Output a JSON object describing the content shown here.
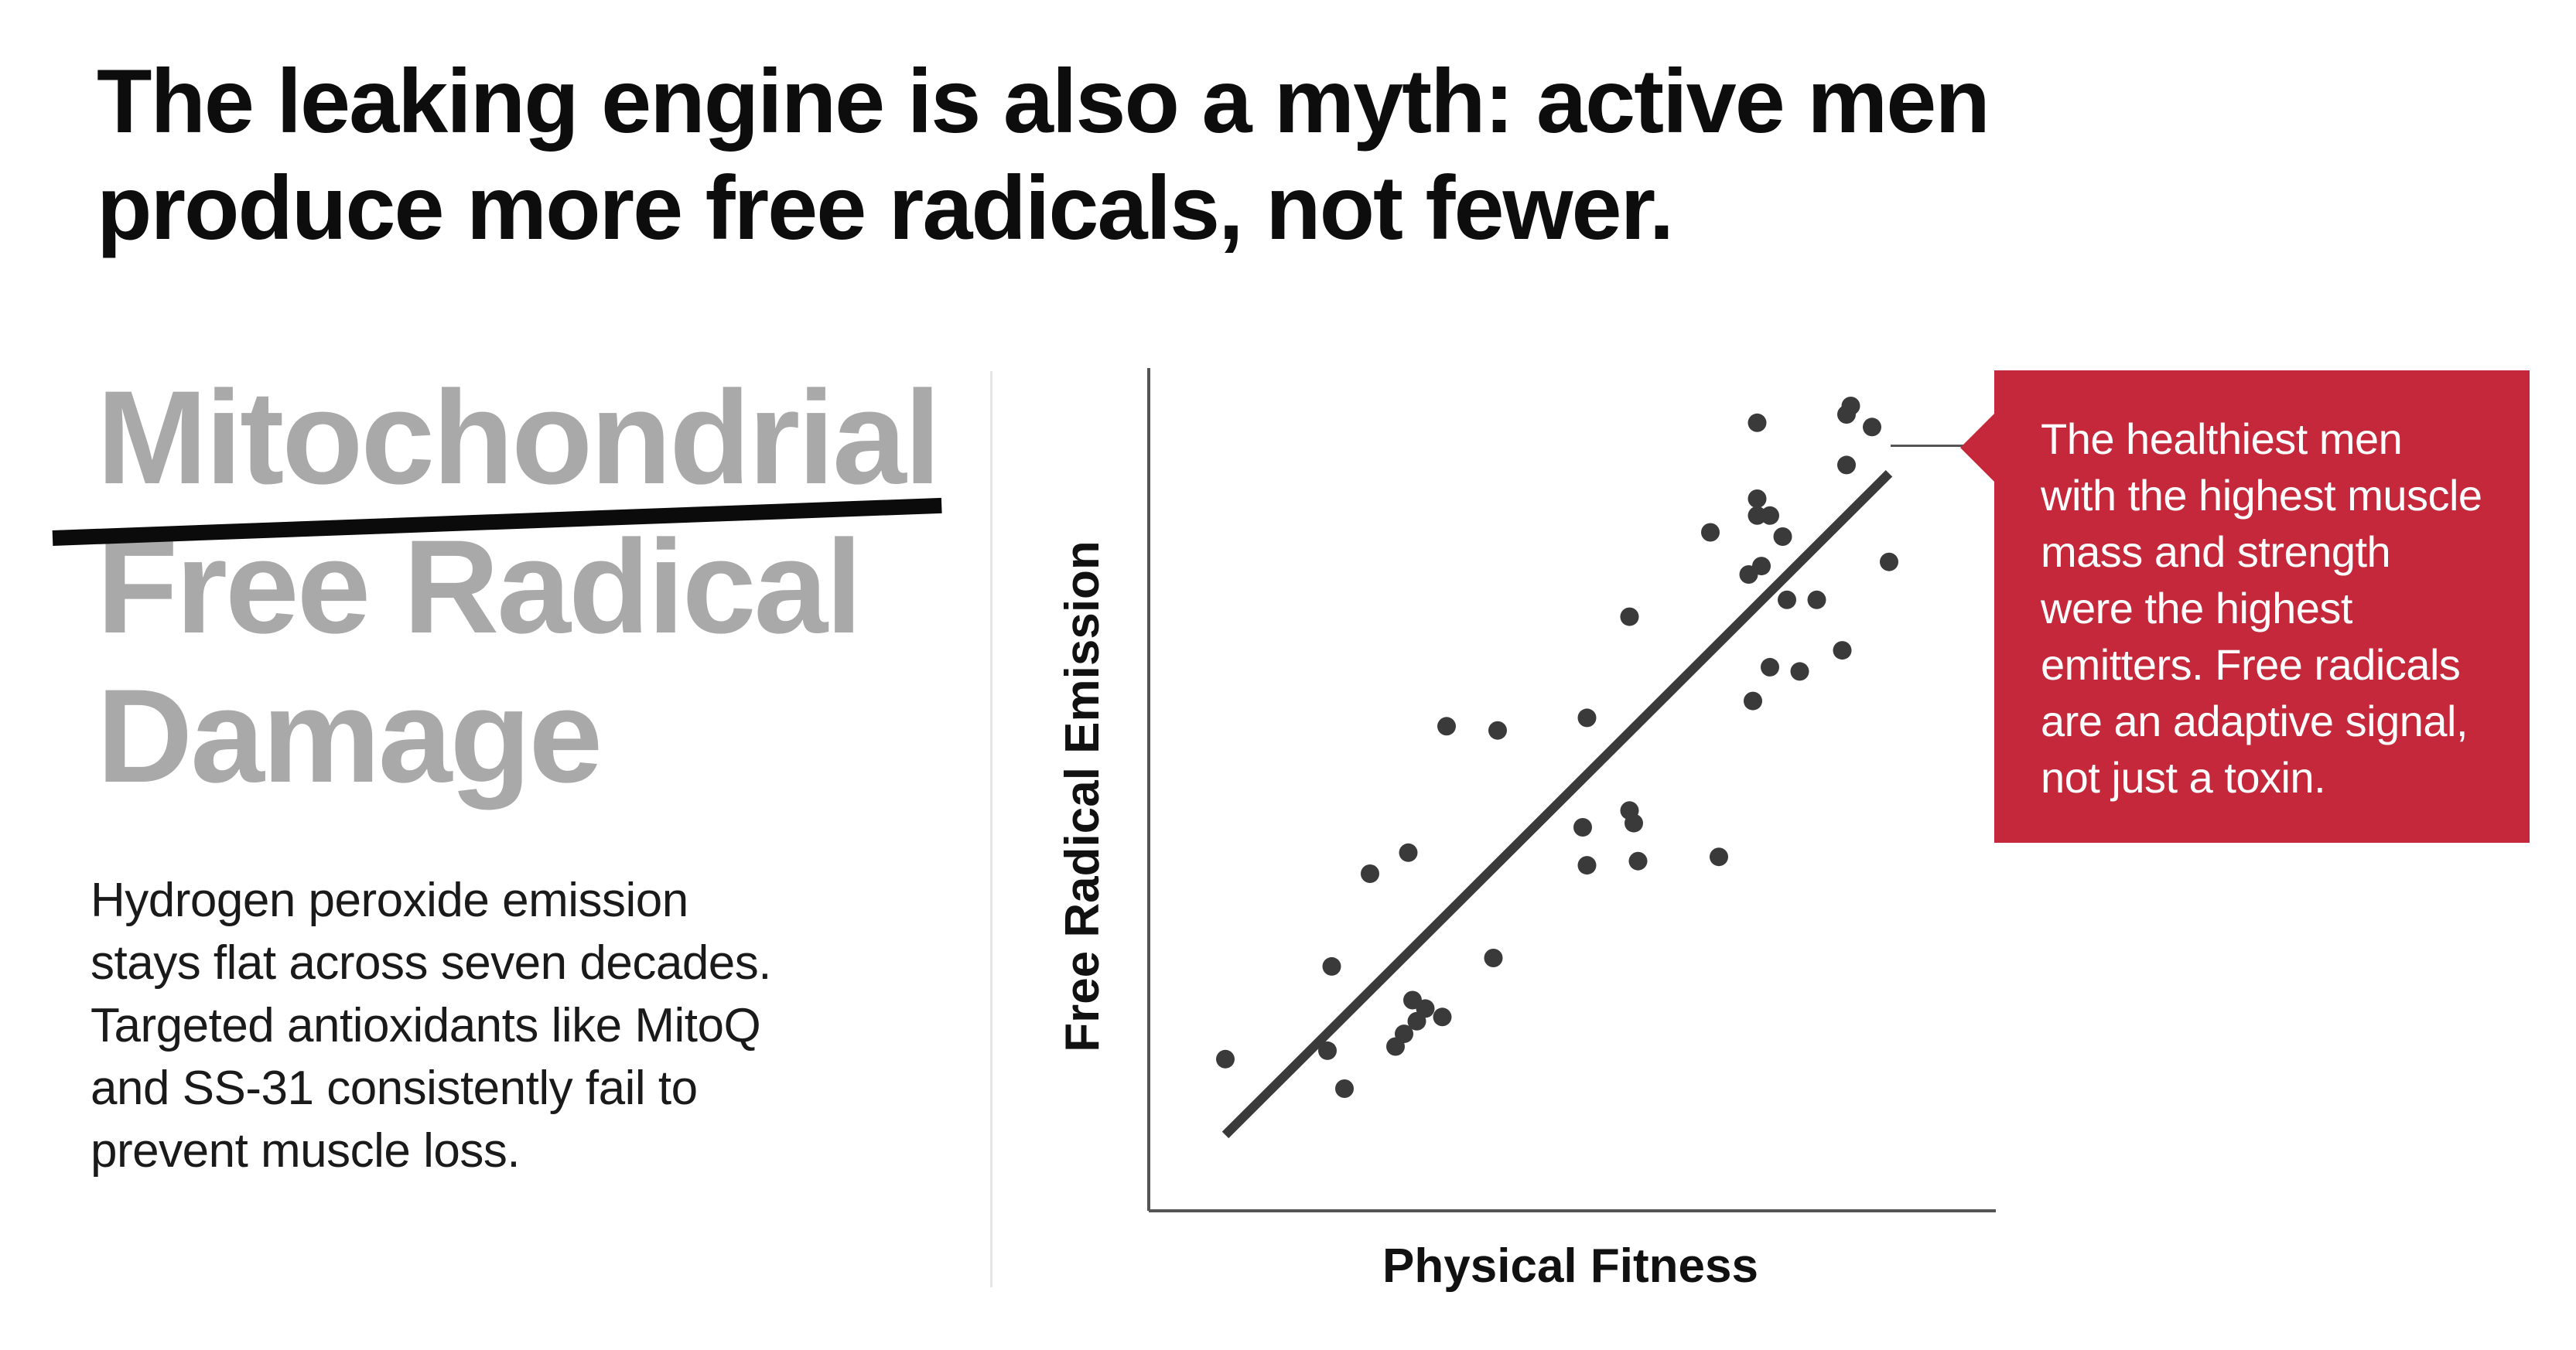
{
  "headline": {
    "line1": "The leaking engine is also a myth: active men",
    "line2": "produce more free radicals, not fewer."
  },
  "crossed_out_theory": {
    "lines": [
      "Mitochondrial",
      "Free Radical",
      "Damage"
    ]
  },
  "body": {
    "lines": [
      "Hydrogen peroxide emission",
      "stays flat across seven decades.",
      "Targeted antioxidants like MitoQ",
      "and SS-31 consistently fail to",
      "prevent muscle loss."
    ]
  },
  "callout": {
    "lines": [
      "The healthiest men",
      "with the highest muscle",
      "mass and strength",
      "were the highest",
      "emitters. Free radicals",
      "are an adaptive signal,",
      "not just a toxin."
    ]
  },
  "colors": {
    "accent": "#c4283a",
    "points": "#3a3a3a",
    "trend": "#3a3a3a",
    "crossed_text": "#a9a9a9"
  },
  "chart_data": {
    "type": "scatter",
    "title": "",
    "xlabel": "Physical Fitness",
    "ylabel": "Free Radical Emission",
    "xlim": [
      0,
      100
    ],
    "ylim": [
      0,
      100
    ],
    "grid": false,
    "ticks": false,
    "points": [
      [
        9,
        18
      ],
      [
        21,
        19
      ],
      [
        23,
        14.5
      ],
      [
        29,
        19.5
      ],
      [
        30,
        21
      ],
      [
        31,
        25
      ],
      [
        32.5,
        24
      ],
      [
        31.5,
        22.5
      ],
      [
        34.5,
        23
      ],
      [
        21.5,
        29
      ],
      [
        26,
        40
      ],
      [
        30.5,
        42.5
      ],
      [
        40.5,
        30
      ],
      [
        35,
        57.5
      ],
      [
        41,
        57
      ],
      [
        51,
        45.5
      ],
      [
        57,
        46
      ],
      [
        51.5,
        41
      ],
      [
        56.5,
        47.5
      ],
      [
        57.5,
        41.5
      ],
      [
        51.5,
        58.5
      ],
      [
        56.5,
        70.5
      ],
      [
        67,
        42
      ],
      [
        66,
        80.5
      ],
      [
        71.5,
        84.5
      ],
      [
        74.5,
        80
      ],
      [
        72,
        76.5
      ],
      [
        71.5,
        82.5
      ],
      [
        73,
        82.5
      ],
      [
        75,
        72.5
      ],
      [
        78.5,
        72.5
      ],
      [
        73,
        64.5
      ],
      [
        76.5,
        64
      ],
      [
        81.5,
        66.5
      ],
      [
        70.5,
        75.5
      ],
      [
        71,
        60.5
      ],
      [
        82,
        88.5
      ],
      [
        87,
        77
      ],
      [
        71.5,
        93.5
      ],
      [
        82,
        94.5
      ],
      [
        82.5,
        95.5
      ],
      [
        85,
        93
      ]
    ],
    "trendline": {
      "x": [
        9,
        87
      ],
      "y": [
        9,
        87.5
      ]
    }
  }
}
